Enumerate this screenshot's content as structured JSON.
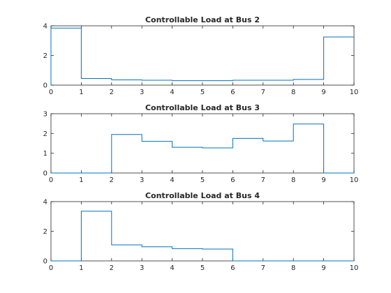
{
  "chart_data": [
    {
      "type": "line",
      "step": "post",
      "title": "Controllable Load at Bus 2",
      "xlabel": "",
      "ylabel": "",
      "xlim": [
        0,
        10
      ],
      "ylim": [
        0,
        4
      ],
      "xticks": [
        0,
        1,
        2,
        3,
        4,
        5,
        6,
        7,
        8,
        9,
        10
      ],
      "yticks": [
        0,
        2,
        4
      ],
      "grid": false,
      "color": "#0072BD",
      "x": [
        0,
        1,
        2,
        3,
        4,
        5,
        6,
        7,
        8,
        9,
        10
      ],
      "y": [
        3.85,
        0.45,
        0.35,
        0.33,
        0.3,
        0.3,
        0.33,
        0.33,
        0.38,
        3.25,
        3.25
      ]
    },
    {
      "type": "line",
      "step": "post",
      "title": "Controllable Load at Bus 3",
      "xlabel": "",
      "ylabel": "",
      "xlim": [
        0,
        10
      ],
      "ylim": [
        0,
        3
      ],
      "xticks": [
        0,
        1,
        2,
        3,
        4,
        5,
        6,
        7,
        8,
        9,
        10
      ],
      "yticks": [
        0,
        1,
        2,
        3
      ],
      "grid": false,
      "color": "#0072BD",
      "x": [
        0,
        1,
        2,
        3,
        4,
        5,
        6,
        7,
        8,
        9,
        10
      ],
      "y": [
        0,
        0,
        1.95,
        1.6,
        1.3,
        1.27,
        1.75,
        1.62,
        2.48,
        0,
        0
      ]
    },
    {
      "type": "line",
      "step": "post",
      "title": "Controllable Load at Bus 4",
      "xlabel": "",
      "ylabel": "",
      "xlim": [
        0,
        10
      ],
      "ylim": [
        0,
        4
      ],
      "xticks": [
        0,
        1,
        2,
        3,
        4,
        5,
        6,
        7,
        8,
        9,
        10
      ],
      "yticks": [
        0,
        2,
        4
      ],
      "grid": false,
      "color": "#0072BD",
      "x": [
        0,
        1,
        2,
        3,
        4,
        5,
        6,
        7,
        8,
        9,
        10
      ],
      "y": [
        0,
        3.35,
        1.08,
        0.95,
        0.83,
        0.8,
        0,
        0,
        0,
        0,
        0
      ]
    }
  ]
}
